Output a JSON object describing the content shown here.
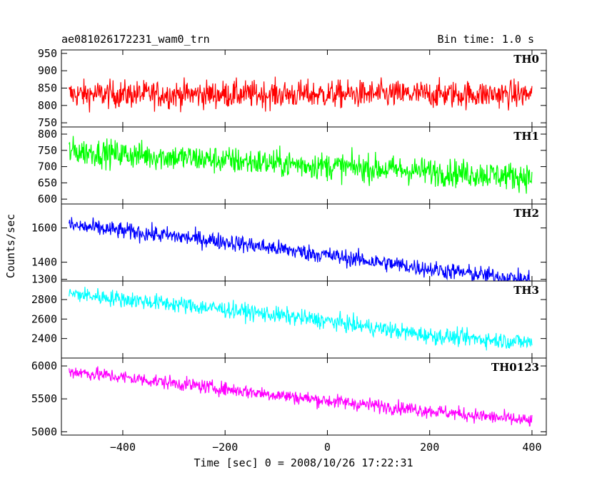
{
  "header": {
    "title": "ae081026172231_wam0_trn",
    "bin_time": "Bin time: 1.0 s"
  },
  "chart_data": {
    "type": "line",
    "xlabel": "Time [sec] 0 = 2008/10/26 17:22:31",
    "ylabel": "Counts/sec",
    "xlim": [
      -520,
      428
    ],
    "x_ticks": [
      -400,
      -200,
      0,
      200,
      400
    ],
    "x_tick_labels": [
      "−400",
      "−200",
      "0",
      "200",
      "400"
    ],
    "x_range": [
      -505,
      400
    ],
    "panels": [
      {
        "name": "TH0",
        "color": "#ff0000",
        "ylim": [
          738,
          960
        ],
        "yticks": [
          750,
          800,
          850,
          900,
          950
        ],
        "trend": [
          [
            -505,
            832
          ],
          [
            400,
            832
          ]
        ],
        "noise": 28
      },
      {
        "name": "TH1",
        "color": "#00ff00",
        "ylim": [
          585,
          822
        ],
        "yticks": [
          600,
          650,
          700,
          750,
          800
        ],
        "trend": [
          [
            -505,
            748
          ],
          [
            -100,
            710
          ],
          [
            400,
            668
          ]
        ],
        "noise": 30
      },
      {
        "name": "TH2",
        "color": "#0000ff",
        "ylim": [
          1290,
          1740
        ],
        "yticks": [
          1300,
          1400,
          1600
        ],
        "trend": [
          [
            -505,
            1615
          ],
          [
            -200,
            1520
          ],
          [
            0,
            1440
          ],
          [
            200,
            1360
          ],
          [
            400,
            1295
          ]
        ],
        "noise": 35
      },
      {
        "name": "TH3",
        "color": "#00ffff",
        "ylim": [
          2200,
          2990
        ],
        "yticks": [
          2400,
          2600,
          2800
        ],
        "trend": [
          [
            -505,
            2860
          ],
          [
            -200,
            2700
          ],
          [
            0,
            2580
          ],
          [
            200,
            2430
          ],
          [
            400,
            2360
          ]
        ],
        "noise": 60
      },
      {
        "name": "TH0123",
        "color": "#ff00ff",
        "ylim": [
          4950,
          6120
        ],
        "yticks": [
          5000,
          5500,
          6000
        ],
        "trend": [
          [
            -505,
            5920
          ],
          [
            -200,
            5650
          ],
          [
            0,
            5470
          ],
          [
            200,
            5320
          ],
          [
            400,
            5160
          ]
        ],
        "noise": 75
      }
    ]
  }
}
